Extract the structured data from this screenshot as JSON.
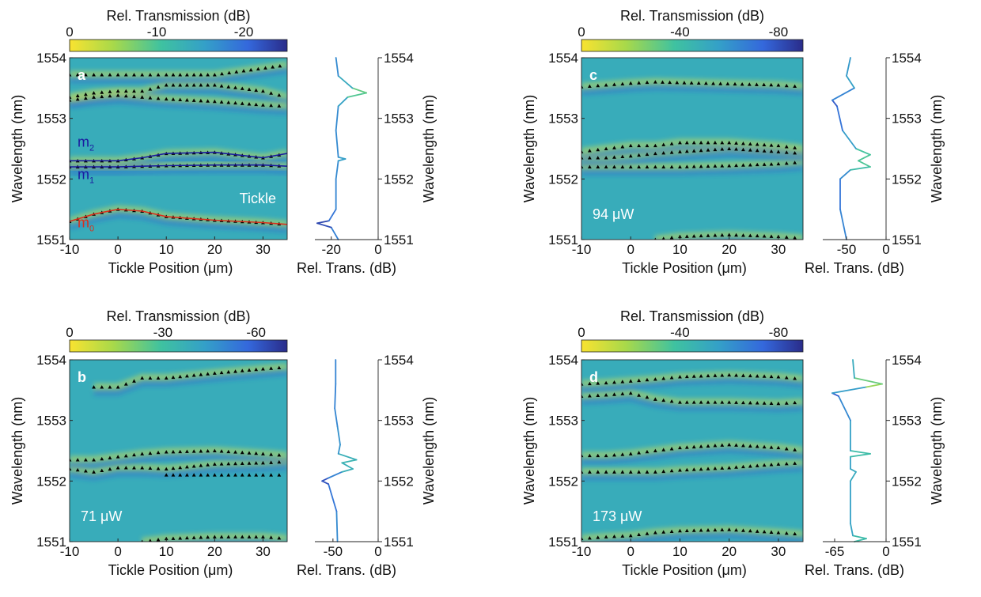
{
  "colors": {
    "map_low": "#f9e330",
    "map_mid_high": "#4fc59a",
    "map_mid": "#34a0c8",
    "map_deep": "#2d55d8",
    "map_darkest": "#2a2c8a",
    "triangle_marker": "#000000",
    "m0_curve": "#d9301c",
    "m1_m2_curves": "#1a1aa0"
  },
  "chart_data": [
    {
      "id": "a",
      "type": "heatmap",
      "panel_letter": "a",
      "colorbar": {
        "label": "Rel. Transmission (dB)",
        "range": [
          0,
          -25
        ],
        "ticks": [
          "0",
          "-10",
          "-20"
        ],
        "tick_values": [
          0,
          -10,
          -20
        ]
      },
      "xlabel": "Tickle Position (μm)",
      "ylabel": "Wavelength (nm)",
      "xlim": [
        -10,
        35
      ],
      "ylim": [
        1551,
        1554
      ],
      "xticks": [
        "-10",
        "0",
        "10",
        "20",
        "30"
      ],
      "yticks": [
        "1551",
        "1552",
        "1553",
        "1554"
      ],
      "annotation": "Tickle",
      "mode_labels": [
        "m",
        "m",
        "m"
      ],
      "mode_subscripts": [
        "2",
        "1",
        "0"
      ],
      "side_plot": {
        "type": "line",
        "xlabel": "Rel. Trans. (dB)",
        "ylabel": "Wavelength (nm)",
        "xlim": [
          -27,
          0
        ],
        "xticks": [
          "-20",
          "0"
        ],
        "xtick_values": [
          -20,
          0
        ],
        "yticks": [
          "1551",
          "1552",
          "1553",
          "1554"
        ],
        "wavelengths": [
          1551.0,
          1551.2,
          1551.27,
          1551.31,
          1551.5,
          1552.0,
          1552.3,
          1552.33,
          1552.36,
          1552.8,
          1553.2,
          1553.35,
          1553.42,
          1553.5,
          1553.7,
          1554.0
        ],
        "values": [
          -17,
          -20,
          -26,
          -21,
          -18,
          -18,
          -17,
          -14,
          -17,
          -18,
          -17,
          -13,
          -5,
          -11,
          -17,
          -18
        ]
      },
      "series": [
        {
          "name": "m0",
          "wavelength": [
            1551.3,
            1551.42,
            1551.5,
            1551.47,
            1551.38,
            1551.32,
            1551.28,
            1551.25
          ]
        },
        {
          "name": "m1",
          "wavelength": [
            1552.2,
            1552.2,
            1552.2,
            1552.21,
            1552.22,
            1552.23,
            1552.23,
            1552.21
          ]
        },
        {
          "name": "m2",
          "wavelength": [
            1552.3,
            1552.3,
            1552.3,
            1552.35,
            1552.42,
            1552.44,
            1552.35,
            1552.42
          ]
        },
        {
          "name": "",
          "wavelength": [
            1553.35,
            1553.42,
            1553.45,
            1553.45,
            1553.55,
            1553.55,
            1553.45,
            1553.35
          ]
        },
        {
          "name": "",
          "wavelength": [
            1553.3,
            1553.35,
            1553.38,
            1553.35,
            1553.32,
            1553.28,
            1553.22,
            1553.2
          ]
        },
        {
          "name": "",
          "wavelength": [
            1553.72,
            1553.72,
            1553.72,
            1553.72,
            1553.72,
            1553.72,
            null,
            1553.88
          ]
        }
      ],
      "x_positions": [
        -10,
        -5,
        0,
        5,
        10,
        20,
        30,
        35
      ]
    },
    {
      "id": "b",
      "type": "heatmap",
      "panel_letter": "b",
      "power_label": "71 μW",
      "colorbar": {
        "label": "Rel. Transmission (dB)",
        "range": [
          0,
          -70
        ],
        "ticks": [
          "0",
          "-30",
          "-60"
        ],
        "tick_values": [
          0,
          -30,
          -60
        ]
      },
      "xlabel": "Tickle Position (μm)",
      "ylabel": "Wavelength (nm)",
      "xlim": [
        -10,
        35
      ],
      "ylim": [
        1551,
        1554
      ],
      "xticks": [
        "-10",
        "0",
        "10",
        "20",
        "30"
      ],
      "yticks": [
        "1551",
        "1552",
        "1553",
        "1554"
      ],
      "side_plot": {
        "type": "line",
        "xlabel": "Rel. Trans. (dB)",
        "ylabel": "Wavelength (nm)",
        "xlim": [
          -70,
          0
        ],
        "xticks": [
          "-50",
          "0"
        ],
        "xtick_values": [
          -50,
          0
        ],
        "yticks": [
          "1551",
          "1552",
          "1553",
          "1554"
        ],
        "wavelengths": [
          1551.0,
          1551.5,
          1551.95,
          1552.0,
          1552.05,
          1552.15,
          1552.2,
          1552.3,
          1552.35,
          1552.45,
          1552.6,
          1552.9,
          1553.2,
          1553.6,
          1554.0
        ],
        "values": [
          -45,
          -46,
          -55,
          -62,
          -55,
          -40,
          -28,
          -40,
          -24,
          -44,
          -42,
          -45,
          -48,
          -47,
          -47
        ]
      },
      "series": [
        {
          "name": "",
          "wavelength": [
            1552.2,
            1552.15,
            1552.22,
            1552.22,
            1552.2,
            1552.28,
            1552.3,
            1552.32
          ]
        },
        {
          "name": "",
          "wavelength": [
            1552.35,
            1552.35,
            1552.4,
            1552.45,
            1552.48,
            1552.5,
            1552.45,
            1552.42
          ]
        },
        {
          "name": "",
          "wavelength": [
            null,
            null,
            null,
            null,
            1552.1,
            1552.1,
            1552.1,
            1552.1
          ]
        },
        {
          "name": "",
          "wavelength": [
            null,
            1553.55,
            1553.55,
            1553.7,
            1553.7,
            1553.78,
            1553.85,
            1553.88
          ]
        },
        {
          "name": "",
          "wavelength": [
            null,
            null,
            null,
            1551.0,
            1551.05,
            1551.08,
            1551.08,
            1551.05
          ]
        }
      ],
      "x_positions": [
        -10,
        -5,
        0,
        5,
        10,
        20,
        30,
        35
      ]
    },
    {
      "id": "c",
      "type": "heatmap",
      "panel_letter": "c",
      "power_label": "94 μW",
      "colorbar": {
        "label": "Rel. Transmission (dB)",
        "range": [
          0,
          -90
        ],
        "ticks": [
          "0",
          "-40",
          "-80"
        ],
        "tick_values": [
          0,
          -40,
          -80
        ]
      },
      "xlabel": "Tickle Position (μm)",
      "ylabel": "Wavelength (nm)",
      "xlim": [
        -10,
        35
      ],
      "ylim": [
        1551,
        1554
      ],
      "xticks": [
        "-10",
        "0",
        "10",
        "20",
        "30"
      ],
      "yticks": [
        "1551",
        "1552",
        "1553",
        "1554"
      ],
      "side_plot": {
        "type": "line",
        "xlabel": "Rel. Trans. (dB)",
        "ylabel": "Wavelength (nm)",
        "xlim": [
          -80,
          0
        ],
        "xticks": [
          "-50",
          "0"
        ],
        "xtick_values": [
          -50,
          0
        ],
        "yticks": [
          "1551",
          "1552",
          "1553",
          "1554"
        ],
        "wavelengths": [
          1551.0,
          1551.5,
          1552.0,
          1552.15,
          1552.2,
          1552.3,
          1552.4,
          1552.5,
          1552.8,
          1553.2,
          1553.3,
          1553.5,
          1553.7,
          1554.0
        ],
        "values": [
          -50,
          -58,
          -58,
          -45,
          -20,
          -35,
          -20,
          -38,
          -55,
          -62,
          -68,
          -40,
          -50,
          -45
        ]
      },
      "series": [
        {
          "name": "",
          "wavelength": [
            1552.2,
            1552.2,
            1552.2,
            1552.2,
            1552.2,
            1552.22,
            1552.25,
            1552.28
          ]
        },
        {
          "name": "",
          "wavelength": [
            1552.35,
            1552.35,
            1552.38,
            1552.42,
            1552.45,
            1552.5,
            1552.45,
            1552.42
          ]
        },
        {
          "name": "",
          "wavelength": [
            1552.45,
            1552.5,
            1552.55,
            1552.55,
            1552.6,
            1552.6,
            1552.55,
            1552.5
          ]
        },
        {
          "name": "",
          "wavelength": [
            1553.52,
            1553.55,
            1553.58,
            1553.6,
            null,
            null,
            1553.55,
            1553.52
          ]
        },
        {
          "name": "",
          "wavelength": [
            null,
            null,
            null,
            1551.0,
            1551.05,
            1551.08,
            1551.05,
            1551.02
          ]
        }
      ],
      "x_positions": [
        -10,
        -5,
        0,
        5,
        10,
        20,
        30,
        35
      ]
    },
    {
      "id": "d",
      "type": "heatmap",
      "panel_letter": "d",
      "power_label": "173 μW",
      "colorbar": {
        "label": "Rel. Transmission (dB)",
        "range": [
          0,
          -90
        ],
        "ticks": [
          "0",
          "-40",
          "-80"
        ],
        "tick_values": [
          0,
          -40,
          -80
        ]
      },
      "xlabel": "Tickle Position (μm)",
      "ylabel": "Wavelength (nm)",
      "xlim": [
        -10,
        35
      ],
      "ylim": [
        1551,
        1554
      ],
      "xticks": [
        "-10",
        "0",
        "10",
        "20",
        "30"
      ],
      "yticks": [
        "1551",
        "1552",
        "1553",
        "1554"
      ],
      "side_plot": {
        "type": "line",
        "xlabel": "Rel. Trans. (dB)",
        "ylabel": "Wavelength (nm)",
        "xlim": [
          -80,
          0
        ],
        "xticks": [
          "-65",
          "0"
        ],
        "xtick_values": [
          -65,
          0
        ],
        "yticks": [
          "1551",
          "1552",
          "1553",
          "1554"
        ],
        "wavelengths": [
          1551.0,
          1551.05,
          1551.1,
          1551.3,
          1552.0,
          1552.15,
          1552.2,
          1552.4,
          1552.45,
          1552.5,
          1553.0,
          1553.4,
          1553.45,
          1553.55,
          1553.6,
          1553.7,
          1554.0
        ],
        "values": [
          -40,
          -25,
          -42,
          -45,
          -45,
          -38,
          -45,
          -45,
          -20,
          -45,
          -45,
          -60,
          -68,
          -25,
          -5,
          -40,
          -42
        ]
      },
      "series": [
        {
          "name": "",
          "wavelength": [
            1551.05,
            1551.08,
            1551.1,
            1551.15,
            1551.18,
            1551.2,
            1551.15,
            1551.12
          ]
        },
        {
          "name": "",
          "wavelength": [
            1552.15,
            1552.15,
            1552.15,
            1552.15,
            1552.18,
            1552.22,
            1552.28,
            1552.3
          ]
        },
        {
          "name": "",
          "wavelength": [
            1552.42,
            1552.42,
            1552.45,
            1552.5,
            1552.55,
            1552.6,
            1552.55,
            1552.5
          ]
        },
        {
          "name": "",
          "wavelength": [
            1553.4,
            1553.42,
            1553.45,
            1553.35,
            1553.3,
            1553.3,
            1553.28,
            1553.3
          ]
        },
        {
          "name": "",
          "wavelength": [
            1553.6,
            1553.62,
            1553.65,
            1553.68,
            1553.72,
            1553.75,
            1553.72,
            1553.68
          ]
        }
      ],
      "x_positions": [
        -10,
        -5,
        0,
        5,
        10,
        20,
        30,
        35
      ]
    }
  ]
}
